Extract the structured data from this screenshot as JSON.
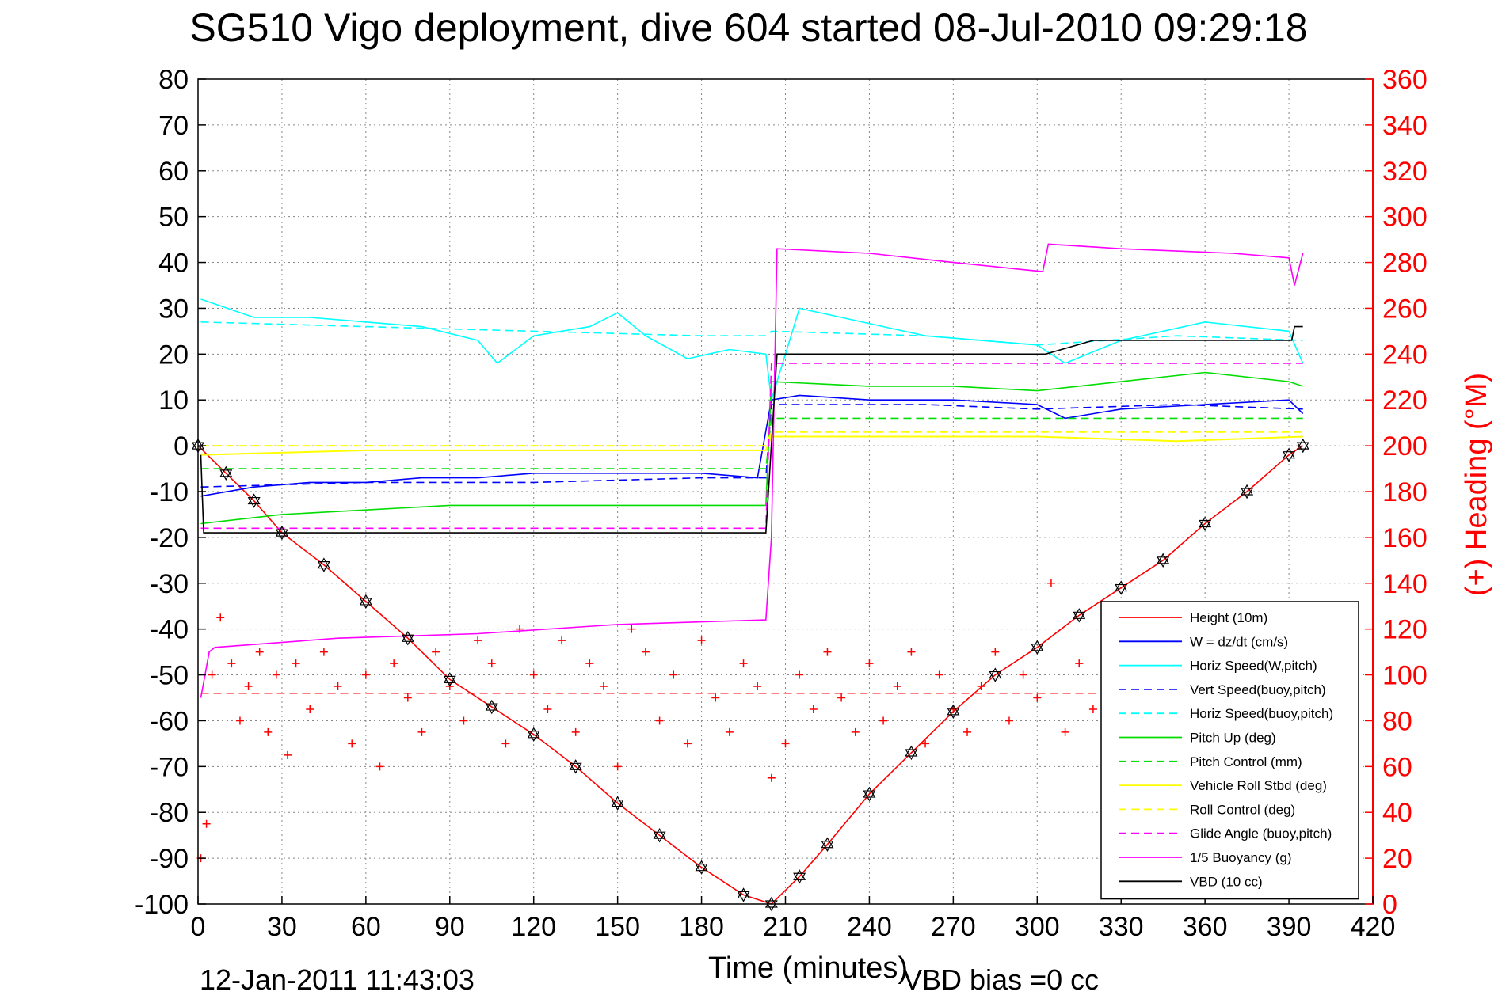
{
  "chart_data": {
    "type": "line",
    "title": "SG510 Vigo deployment, dive 604 started 08-Jul-2010 09:29:18",
    "xlabel": "Time (minutes)",
    "ylabel_right": "(+) Heading (°M)",
    "timestamp": "12-Jan-2011 11:43:03",
    "vbd_bias": "VBD bias =0 cc",
    "xlim": [
      0,
      420
    ],
    "ylim": [
      -100,
      80
    ],
    "ylim_right": [
      0,
      360
    ],
    "grid": true,
    "legend_position": "bottom-right",
    "x_ticks": [
      "0",
      "30",
      "60",
      "90",
      "120",
      "150",
      "180",
      "210",
      "240",
      "270",
      "300",
      "330",
      "360",
      "390",
      "420"
    ],
    "y_ticks": [
      "80",
      "70",
      "60",
      "50",
      "40",
      "30",
      "20",
      "10",
      "0",
      "-10",
      "-20",
      "-30",
      "-40",
      "-50",
      "-60",
      "-70",
      "-80",
      "-90",
      "-100"
    ],
    "y_ticks_right": [
      "360",
      "340",
      "320",
      "300",
      "280",
      "260",
      "240",
      "220",
      "200",
      "180",
      "160",
      "140",
      "120",
      "100",
      "80",
      "60",
      "40",
      "20",
      "0"
    ],
    "series": [
      {
        "name": "Height (10m)",
        "color": "#ff0000",
        "style": "solid",
        "x": [
          0,
          10,
          20,
          30,
          45,
          60,
          75,
          90,
          105,
          120,
          135,
          150,
          165,
          180,
          195,
          205,
          215,
          225,
          240,
          255,
          270,
          285,
          300,
          315,
          330,
          345,
          360,
          375,
          390,
          395
        ],
        "y": [
          0,
          -6,
          -12,
          -19,
          -26,
          -34,
          -42,
          -51,
          -57,
          -63,
          -70,
          -78,
          -85,
          -92,
          -98,
          -100,
          -94,
          -87,
          -76,
          -67,
          -58,
          -50,
          -44,
          -37,
          -31,
          -25,
          -17,
          -10,
          -2,
          0
        ]
      },
      {
        "name": "W = dz/dt (cm/s)",
        "color": "#0000ff",
        "style": "solid",
        "x": [
          1,
          20,
          40,
          60,
          80,
          100,
          120,
          140,
          160,
          180,
          200,
          205,
          215,
          240,
          270,
          300,
          310,
          330,
          360,
          390,
          395
        ],
        "y": [
          -11,
          -9,
          -8,
          -8,
          -7,
          -7,
          -6,
          -6,
          -6,
          -6,
          -7,
          10,
          11,
          10,
          10,
          9,
          6,
          8,
          9,
          10,
          7
        ]
      },
      {
        "name": "Horiz Speed(W,pitch)",
        "color": "#00ffff",
        "style": "solid",
        "x": [
          1,
          20,
          40,
          60,
          80,
          100,
          107,
          120,
          140,
          150,
          160,
          175,
          190,
          203,
          205,
          215,
          230,
          260,
          300,
          310,
          330,
          360,
          390,
          395
        ],
        "y": [
          32,
          28,
          28,
          27,
          26,
          23,
          18,
          24,
          26,
          29,
          24,
          19,
          21,
          20,
          10,
          30,
          28,
          24,
          22,
          18,
          23,
          27,
          25,
          18
        ]
      },
      {
        "name": "Vert Speed(buoy,pitch)",
        "color": "#0000ff",
        "style": "dashed",
        "x": [
          1,
          60,
          120,
          180,
          203,
          205,
          260,
          300,
          350,
          395
        ],
        "y": [
          -9,
          -8,
          -8,
          -7,
          -7,
          9,
          9,
          8,
          9,
          8
        ]
      },
      {
        "name": "Horiz Speed(buoy,pitch)",
        "color": "#00ffff",
        "style": "dashed",
        "x": [
          1,
          60,
          120,
          180,
          203,
          205,
          260,
          300,
          350,
          395
        ],
        "y": [
          27,
          26,
          25,
          24,
          24,
          25,
          24,
          22,
          24,
          23
        ]
      },
      {
        "name": "Pitch Up (deg)",
        "color": "#00dd00",
        "style": "solid",
        "x": [
          1,
          30,
          60,
          90,
          120,
          150,
          180,
          203,
          205,
          240,
          270,
          300,
          330,
          360,
          390,
          395
        ],
        "y": [
          -17,
          -15,
          -14,
          -13,
          -13,
          -13,
          -13,
          -13,
          14,
          13,
          13,
          12,
          14,
          16,
          14,
          13
        ]
      },
      {
        "name": "Pitch Control (mm)",
        "color": "#00dd00",
        "style": "dashed",
        "x": [
          1,
          60,
          120,
          180,
          203,
          205,
          260,
          300,
          350,
          395
        ],
        "y": [
          -5,
          -5,
          -5,
          -5,
          -5,
          6,
          6,
          6,
          6,
          6
        ]
      },
      {
        "name": "Vehicle Roll Stbd (deg)",
        "color": "#ffff00",
        "style": "solid",
        "x": [
          1,
          60,
          120,
          180,
          203,
          205,
          260,
          300,
          350,
          395
        ],
        "y": [
          -2,
          -1,
          -1,
          -1,
          -1,
          2,
          2,
          2,
          1,
          2
        ]
      },
      {
        "name": "Roll Control (deg)",
        "color": "#ffff00",
        "style": "dashed",
        "x": [
          1,
          60,
          120,
          180,
          203,
          205,
          260,
          300,
          350,
          395
        ],
        "y": [
          0,
          0,
          0,
          0,
          0,
          3,
          3,
          3,
          3,
          3
        ]
      },
      {
        "name": "Glide Angle (buoy,pitch)",
        "color": "#ff00ff",
        "style": "dashed",
        "x": [
          1,
          60,
          120,
          180,
          203,
          205,
          260,
          300,
          350,
          395
        ],
        "y": [
          -18,
          -18,
          -18,
          -18,
          -18,
          18,
          18,
          18,
          18,
          18
        ]
      },
      {
        "name": "1/5 Buoyancy (g)",
        "color": "#ff00ff",
        "style": "solid",
        "x": [
          1,
          4,
          6,
          50,
          100,
          150,
          203,
          205,
          207,
          240,
          270,
          302,
          304,
          330,
          370,
          390,
          392,
          395
        ],
        "y": [
          -55,
          -45,
          -44,
          -42,
          -41,
          -39,
          -38,
          -20,
          43,
          42,
          40,
          38,
          44,
          43,
          42,
          41,
          35,
          42
        ]
      },
      {
        "name": "VBD (10 cc)",
        "color": "#000000",
        "style": "solid",
        "x": [
          1,
          2,
          200,
          203,
          207,
          300,
          303,
          320,
          391,
          392,
          395
        ],
        "y": [
          -2,
          -19,
          -19,
          -19,
          20,
          20,
          20,
          23,
          23,
          26,
          26
        ]
      }
    ],
    "heading_trend_right": {
      "color": "#ff0000",
      "style": "dashed",
      "value": 92
    },
    "heading_points_right": {
      "color": "#ff0000",
      "marker": "+",
      "x": [
        1,
        3,
        5,
        8,
        12,
        15,
        18,
        22,
        25,
        28,
        32,
        35,
        40,
        45,
        50,
        55,
        60,
        65,
        70,
        75,
        80,
        85,
        90,
        95,
        100,
        105,
        110,
        115,
        120,
        125,
        130,
        135,
        140,
        145,
        150,
        155,
        160,
        165,
        170,
        175,
        180,
        185,
        190,
        195,
        200,
        205,
        210,
        215,
        220,
        225,
        230,
        235,
        240,
        245,
        250,
        255,
        260,
        265,
        270,
        275,
        280,
        285,
        290,
        295,
        300,
        305,
        310,
        315,
        320,
        325,
        330
      ],
      "y": [
        20,
        35,
        100,
        125,
        105,
        80,
        95,
        110,
        75,
        100,
        65,
        105,
        85,
        110,
        95,
        70,
        100,
        60,
        105,
        90,
        75,
        110,
        95,
        80,
        115,
        105,
        70,
        120,
        100,
        85,
        115,
        75,
        105,
        95,
        60,
        120,
        110,
        80,
        100,
        70,
        115,
        90,
        75,
        105,
        95,
        55,
        70,
        100,
        85,
        110,
        90,
        75,
        105,
        80,
        95,
        110,
        70,
        100,
        85,
        75,
        95,
        110,
        80,
        100,
        90,
        140,
        75,
        105,
        85,
        120,
        90
      ]
    },
    "legend": [
      "Height (10m)",
      "W = dz/dt (cm/s)",
      "Horiz Speed(W,pitch)",
      "Vert Speed(buoy,pitch)",
      "Horiz Speed(buoy,pitch)",
      "Pitch Up (deg)",
      "Pitch Control (mm)",
      "Vehicle Roll Stbd (deg)",
      "Roll Control (deg)",
      "Glide Angle (buoy,pitch)",
      "1/5 Buoyancy (g)",
      "VBD (10 cc)"
    ]
  }
}
